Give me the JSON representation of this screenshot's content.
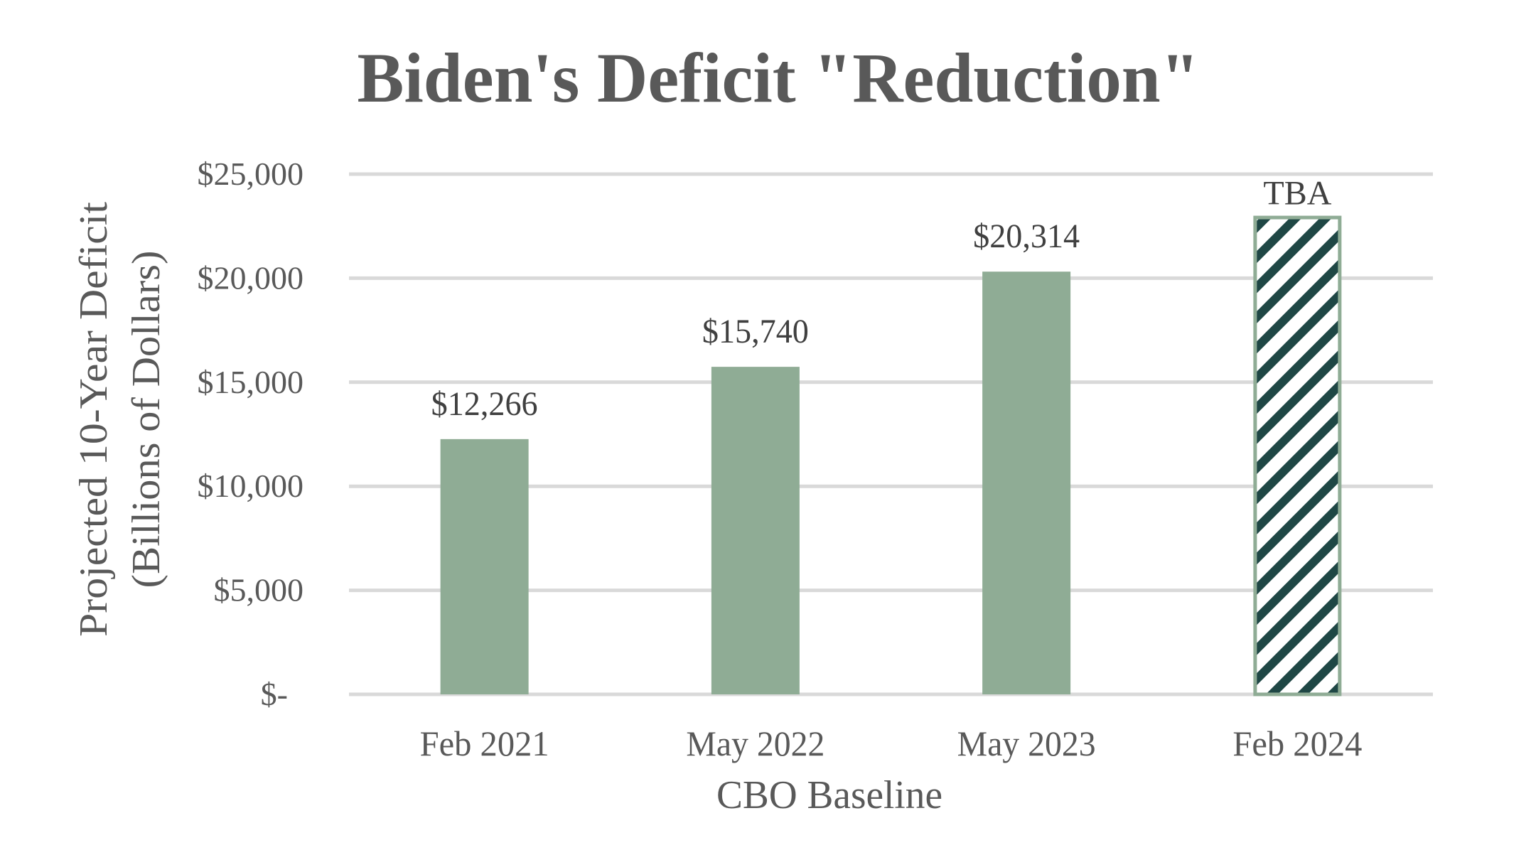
{
  "chart_data": {
    "type": "bar",
    "title": "Biden's Deficit \"Reduction\"",
    "xlabel": "CBO Baseline",
    "ylabel_lines": [
      "Projected 10-Year Deficit",
      "(Billions of Dollars)"
    ],
    "ylim": [
      0,
      25000
    ],
    "yticks": [
      0,
      5000,
      10000,
      15000,
      20000,
      25000
    ],
    "ytick_labels": [
      "$-",
      "$5,000",
      "$10,000",
      "$15,000",
      "$20,000",
      "$25,000"
    ],
    "grid": true,
    "legend": null,
    "categories": [
      "Feb 2021",
      "May 2022",
      "May 2023",
      "Feb 2024"
    ],
    "values": [
      12266,
      15740,
      20314,
      23000
    ],
    "data_labels": [
      "$12,266",
      "$15,740",
      "$20,314",
      "TBA"
    ],
    "bar_styles": [
      "solid",
      "solid",
      "solid",
      "hatched"
    ],
    "colors": {
      "bar": "#8fac95",
      "hatch": "#1f4745",
      "grid": "#d9d9d9",
      "axis_text": "#595959",
      "label_text": "#404040"
    }
  }
}
